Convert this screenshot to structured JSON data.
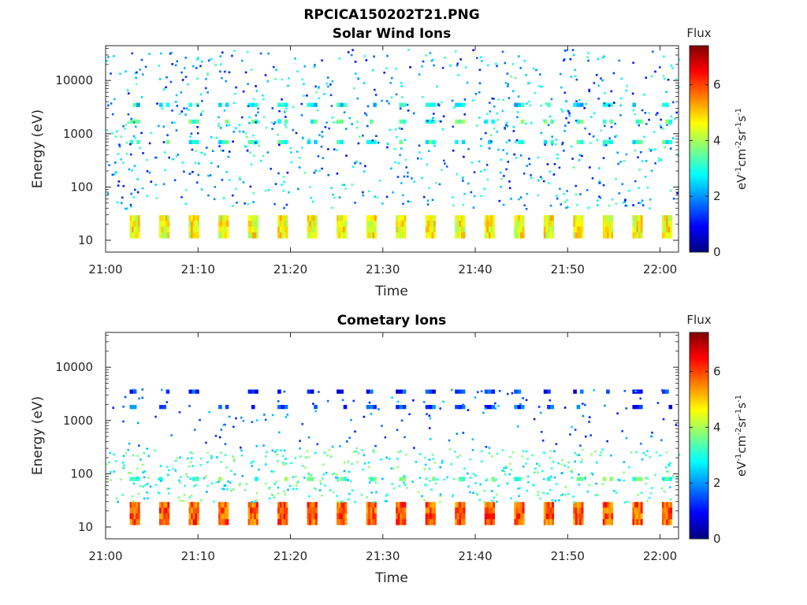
{
  "figure_title": "RPCICA150202T21.PNG",
  "chart_data": [
    {
      "type": "heatmap",
      "title": "Solar Wind Ions",
      "xlabel": "Time",
      "ylabel": "Energy (eV)",
      "x_ticks": [
        "21:00",
        "21:10",
        "21:20",
        "21:30",
        "21:40",
        "21:50",
        "22:00"
      ],
      "x_range_minutes": [
        0,
        62
      ],
      "y_scale": "log",
      "y_ticks": [
        "10",
        "100",
        "1000",
        "10000"
      ],
      "y_range_eV": [
        6,
        45000
      ],
      "colorbar": {
        "title": "Flux",
        "label": "eV-1cm-2sr-1s-1",
        "ticks": [
          "0",
          "2",
          "4",
          "6"
        ],
        "range": [
          0,
          7.4
        ],
        "colormap": "jet"
      },
      "sweep_start_minutes": [
        2.6,
        5.8,
        9.0,
        12.2,
        15.4,
        18.6,
        21.8,
        25.0,
        28.2,
        31.4,
        34.6,
        37.8,
        41.0,
        44.2,
        47.4,
        50.6,
        53.8,
        57.0,
        60.2
      ],
      "energy_bands": [
        {
          "energy_eV": 18,
          "level": 4.6
        },
        {
          "energy_eV": 3500,
          "level": 2.7
        },
        {
          "energy_eV": 1700,
          "level": 3.3
        },
        {
          "energy_eV": 700,
          "level": 3.1
        }
      ]
    },
    {
      "type": "heatmap",
      "title": "Cometary Ions",
      "xlabel": "Time",
      "ylabel": "Energy (eV)",
      "x_ticks": [
        "21:00",
        "21:10",
        "21:20",
        "21:30",
        "21:40",
        "21:50",
        "22:00"
      ],
      "x_range_minutes": [
        0,
        62
      ],
      "y_scale": "log",
      "y_ticks": [
        "10",
        "100",
        "1000",
        "10000"
      ],
      "y_range_eV": [
        6,
        45000
      ],
      "colorbar": {
        "title": "Flux",
        "label": "eV-1cm-2sr-1s-1",
        "ticks": [
          "0",
          "2",
          "4",
          "6"
        ],
        "range": [
          0,
          7.4
        ],
        "colormap": "jet"
      },
      "sweep_start_minutes": [
        2.6,
        5.8,
        9.0,
        12.2,
        15.4,
        18.6,
        21.8,
        25.0,
        28.2,
        31.4,
        34.6,
        37.8,
        41.0,
        44.2,
        47.4,
        50.6,
        53.8,
        57.0,
        60.2
      ],
      "energy_bands": [
        {
          "energy_eV": 18,
          "level": 5.8
        },
        {
          "energy_eV": 80,
          "level": 3.3
        },
        {
          "energy_eV": 1800,
          "level": 1.4
        },
        {
          "energy_eV": 3500,
          "level": 1.2
        }
      ]
    }
  ]
}
